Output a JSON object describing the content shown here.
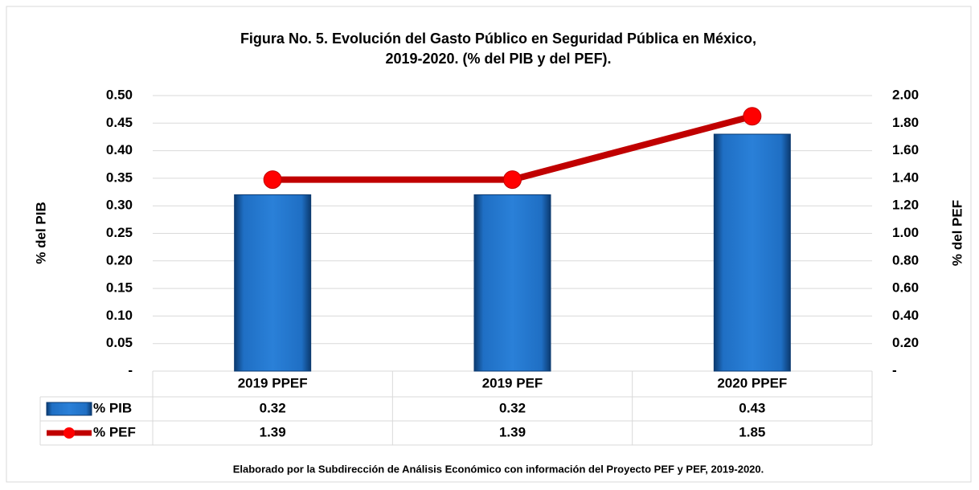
{
  "chart_data": {
    "type": "bar",
    "title": [
      "Figura No. 5. Evolución del Gasto Público en Seguridad Pública en México,",
      "2019-2020. (% del PIB y del PEF)."
    ],
    "categories": [
      "2019 PPEF",
      "2019 PEF",
      "2020 PPEF"
    ],
    "series": [
      {
        "name": "% PIB",
        "type": "bar",
        "color": "#1f6fc4",
        "values": [
          0.32,
          0.32,
          0.43
        ]
      },
      {
        "name": "% PEF",
        "type": "line",
        "axis": "y2",
        "color": "#c00000",
        "marker_color": "#ff0000",
        "values": [
          1.39,
          1.39,
          1.85
        ]
      }
    ],
    "ylabel": "% del PIB",
    "y2label": "% del PEF",
    "ylim": [
      0,
      0.5
    ],
    "yticks": [
      {
        "value": 0,
        "label": "-"
      },
      0.05,
      {
        "value": 0.1,
        "label": "0.10"
      },
      0.15,
      {
        "value": 0.2,
        "label": "0.20"
      },
      0.25,
      {
        "value": 0.3,
        "label": "0.30"
      },
      0.35,
      {
        "value": 0.4,
        "label": "0.40"
      },
      0.45,
      {
        "value": 0.5,
        "label": "0.50"
      }
    ],
    "y2lim": [
      0,
      2
    ],
    "y2ticks": [
      {
        "value": 0,
        "label": "-"
      },
      {
        "value": 0.2,
        "label": "0.20"
      },
      {
        "value": 0.4,
        "label": "0.40"
      },
      {
        "value": 0.6,
        "label": "0.60"
      },
      {
        "value": 0.8,
        "label": "0.80"
      },
      {
        "value": 1,
        "label": "1.00"
      },
      {
        "value": 1.2,
        "label": "1.20"
      },
      {
        "value": 1.4,
        "label": "1.40"
      },
      {
        "value": 1.6,
        "label": "1.60"
      },
      {
        "value": 1.8,
        "label": "1.80"
      },
      {
        "value": 2,
        "label": "2.00"
      }
    ],
    "grid": true,
    "footnote": "Elaborado por la Subdirección de Análisis Económico con información del Proyecto PEF y PEF, 2019-2020."
  }
}
